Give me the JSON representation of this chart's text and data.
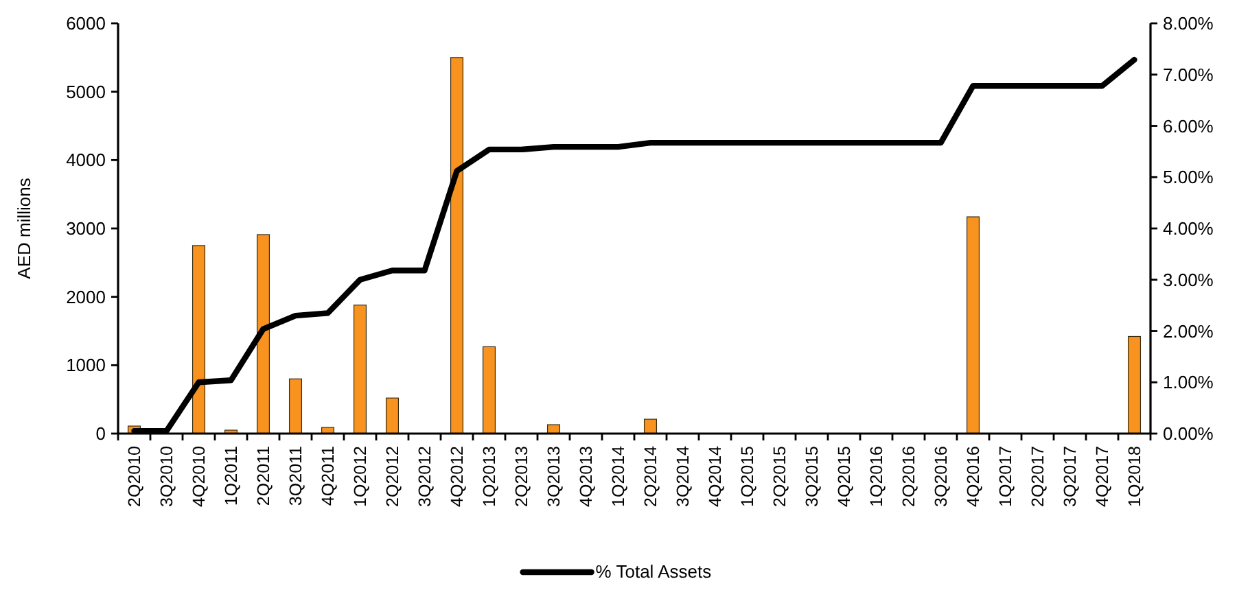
{
  "chart_data": {
    "type": "bar",
    "ylabel": "AED millions",
    "categories": [
      "2Q2010",
      "3Q2010",
      "4Q2010",
      "1Q2011",
      "2Q2011",
      "3Q2011",
      "4Q2011",
      "1Q2012",
      "2Q2012",
      "3Q2012",
      "4Q2012",
      "1Q2013",
      "2Q2013",
      "3Q2013",
      "4Q2013",
      "1Q2014",
      "2Q2014",
      "3Q2014",
      "4Q2014",
      "1Q2015",
      "2Q2015",
      "3Q2015",
      "4Q2015",
      "1Q2016",
      "2Q2016",
      "3Q2016",
      "4Q2016",
      "1Q2017",
      "2Q2017",
      "3Q2017",
      "4Q2017",
      "1Q2018"
    ],
    "series": [
      {
        "color": "#f7931e",
        "values": [
          110,
          null,
          2750,
          50,
          2910,
          800,
          90,
          1880,
          520,
          null,
          5500,
          1270,
          null,
          130,
          null,
          null,
          210,
          null,
          null,
          null,
          null,
          null,
          null,
          null,
          null,
          null,
          3170,
          null,
          null,
          null,
          null,
          1420
        ]
      },
      {
        "type": "line",
        "name": "% Total Assets",
        "color": "#000000",
        "axis": "y2",
        "values": [
          0.05,
          0.05,
          1.0,
          1.04,
          2.04,
          2.3,
          2.35,
          3.0,
          3.18,
          3.18,
          5.12,
          5.54,
          5.54,
          5.59,
          5.59,
          5.59,
          5.67,
          5.67,
          5.67,
          5.67,
          5.67,
          5.67,
          5.67,
          5.67,
          5.67,
          5.67,
          6.78,
          6.78,
          6.78,
          6.78,
          6.78,
          7.29
        ]
      }
    ],
    "ylim": [
      0,
      6000
    ],
    "yticks": [
      0,
      1000,
      2000,
      3000,
      4000,
      5000,
      6000
    ],
    "y2lim": [
      0,
      8
    ],
    "y2ticks": [
      {
        "value": 0,
        "label": "0.00%"
      },
      {
        "value": 1,
        "label": "1.00%"
      },
      {
        "value": 2,
        "label": "2.00%"
      },
      {
        "value": 3,
        "label": "3.00%"
      },
      {
        "value": 4,
        "label": "4.00%"
      },
      {
        "value": 5,
        "label": "5.00%"
      },
      {
        "value": 6,
        "label": "6.00%"
      },
      {
        "value": 7,
        "label": "7.00%"
      },
      {
        "value": 8,
        "label": "8.00%"
      }
    ],
    "legend": "bottom"
  }
}
